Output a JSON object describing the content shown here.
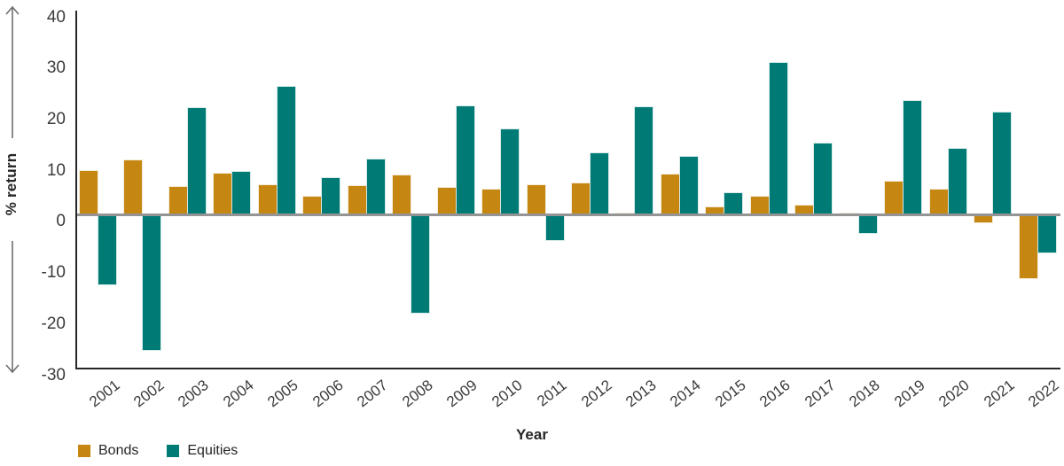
{
  "chart_data": {
    "type": "bar",
    "title": "",
    "xlabel": "Year",
    "ylabel": "% return",
    "ylim": [
      -30,
      40
    ],
    "y_ticks": [
      40,
      30,
      20,
      10,
      0,
      -10,
      -20,
      -30
    ],
    "grid": "zero-line-only",
    "legend_position": "bottom-left",
    "categories": [
      "2001",
      "2002",
      "2003",
      "2004",
      "2005",
      "2006",
      "2007",
      "2008",
      "2009",
      "2010",
      "2011",
      "2012",
      "2013",
      "2014",
      "2015",
      "2016",
      "2017",
      "2018",
      "2019",
      "2020",
      "2021",
      "2022"
    ],
    "series": [
      {
        "name": "Bonds",
        "color": "#C68712",
        "values": [
          8.5,
          10.6,
          5.5,
          8.1,
          5.8,
          3.5,
          5.7,
          7.7,
          5.3,
          4.9,
          5.8,
          6.1,
          0.3,
          7.9,
          1.4,
          3.6,
          1.9,
          0.3,
          6.5,
          4.9,
          -1.5,
          -12.4
        ]
      },
      {
        "name": "Equities",
        "color": "#007A74",
        "values": [
          -13.6,
          -26.5,
          20.9,
          8.4,
          25.1,
          7.2,
          10.9,
          -19.1,
          21.3,
          16.8,
          -5.0,
          12.1,
          21.1,
          11.4,
          4.2,
          29.8,
          13.9,
          -3.6,
          22.3,
          12.9,
          20.0,
          -7.3
        ]
      }
    ]
  },
  "colors": {
    "axis": "#262626",
    "zero_line": "#949494",
    "tick_text": "#3b3b3b",
    "arrow": "#6f6f6f"
  }
}
